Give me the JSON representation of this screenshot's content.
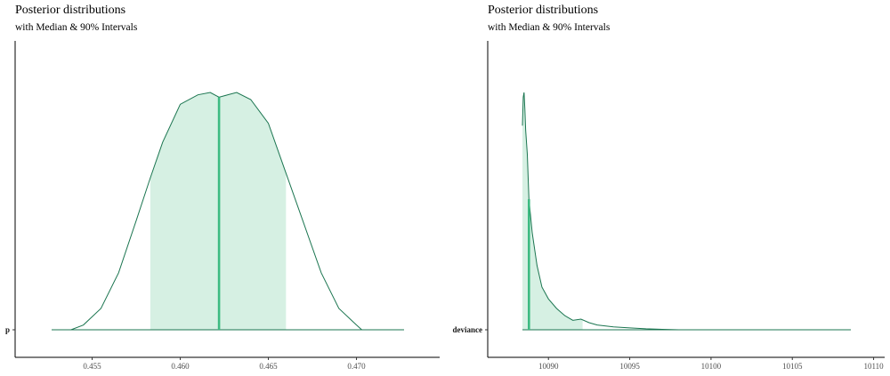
{
  "chart_data": [
    {
      "type": "area",
      "title": "Posterior distributions",
      "subtitle": "with Median & 90% Intervals",
      "parameter": "p",
      "xlim": [
        0.4527,
        0.4727
      ],
      "xticks": [
        0.455,
        0.46,
        0.465,
        0.47
      ],
      "xtick_labels": [
        "0.455",
        "0.460",
        "0.465",
        "0.470"
      ],
      "median": 0.4622,
      "interval_90": [
        0.4583,
        0.466
      ],
      "density": {
        "x": [
          0.4527,
          0.4538,
          0.4545,
          0.4555,
          0.4565,
          0.4575,
          0.4583,
          0.459,
          0.46,
          0.461,
          0.4617,
          0.4622,
          0.4627,
          0.4632,
          0.464,
          0.465,
          0.466,
          0.467,
          0.468,
          0.469,
          0.47,
          0.4703,
          0.4727
        ],
        "y": [
          0.0,
          0.0,
          0.02,
          0.09,
          0.24,
          0.46,
          0.64,
          0.79,
          0.95,
          0.99,
          1.0,
          0.98,
          0.99,
          1.0,
          0.97,
          0.87,
          0.66,
          0.45,
          0.24,
          0.09,
          0.02,
          0.0,
          0.0
        ]
      },
      "color_line": "#1b7550",
      "color_fill": "#d6f0e3",
      "color_median": "#3dbb82",
      "grid": false
    },
    {
      "type": "area",
      "title": "Posterior distributions",
      "subtitle": "with Median & 90% Intervals",
      "parameter": "deviance",
      "xlim": [
        10088.4,
        10108.6
      ],
      "xticks": [
        10090,
        10095,
        10100,
        10105,
        10110
      ],
      "xtick_labels": [
        "10090",
        "10095",
        "10100",
        "10105",
        "10110"
      ],
      "median": 10088.8,
      "interval_90": [
        10088.4,
        10092.1
      ],
      "density": {
        "x": [
          10088.4,
          10088.45,
          10088.5,
          10088.55,
          10088.6,
          10088.7,
          10088.8,
          10089.0,
          10089.3,
          10089.6,
          10090.0,
          10090.5,
          10091.0,
          10091.5,
          10092.0,
          10092.5,
          10093.0,
          10094.0,
          10095.0,
          10096.0,
          10097.0,
          10098.0,
          10100.0,
          10108.6
        ],
        "y": [
          0.86,
          0.98,
          1.0,
          0.93,
          0.84,
          0.74,
          0.55,
          0.41,
          0.27,
          0.18,
          0.13,
          0.09,
          0.06,
          0.04,
          0.045,
          0.03,
          0.02,
          0.012,
          0.008,
          0.004,
          0.002,
          0.0,
          0.0,
          0.0
        ]
      },
      "color_line": "#1b7550",
      "color_fill": "#d6f0e3",
      "color_median": "#3dbb82",
      "grid": false
    }
  ]
}
